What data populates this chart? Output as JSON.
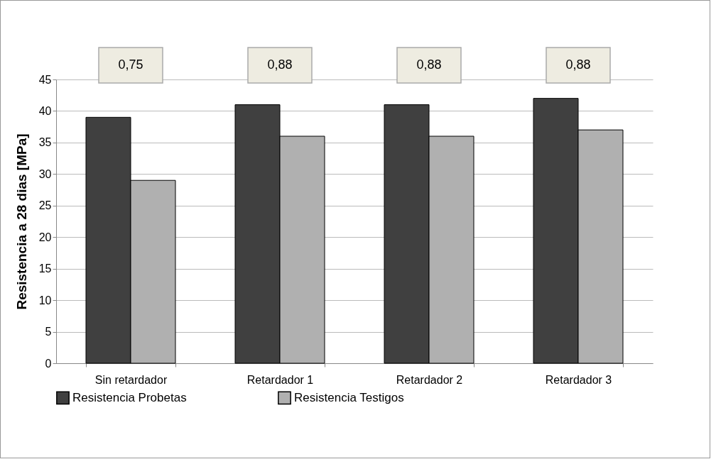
{
  "chart_data": {
    "type": "bar",
    "ylabel": "Resistencia  a 28 dias   [MPa]",
    "categories": [
      "Sin retardador",
      "Retardador 1",
      "Retardador 2",
      "Retardador 3"
    ],
    "series": [
      {
        "name": "Resistencia  Probetas",
        "color": "#404040",
        "values": [
          39,
          41,
          41,
          42
        ]
      },
      {
        "name": "Resistencia  Testigos",
        "color": "#b0b0b0",
        "values": [
          29,
          36,
          36,
          37
        ]
      }
    ],
    "ylim": [
      0,
      45
    ],
    "yticks": [
      0,
      5,
      10,
      15,
      20,
      25,
      30,
      35,
      40,
      45
    ],
    "grid": "y",
    "legend": "bottom",
    "annotations": [
      "0,75",
      "0,88",
      "0,88",
      "0,88"
    ]
  }
}
